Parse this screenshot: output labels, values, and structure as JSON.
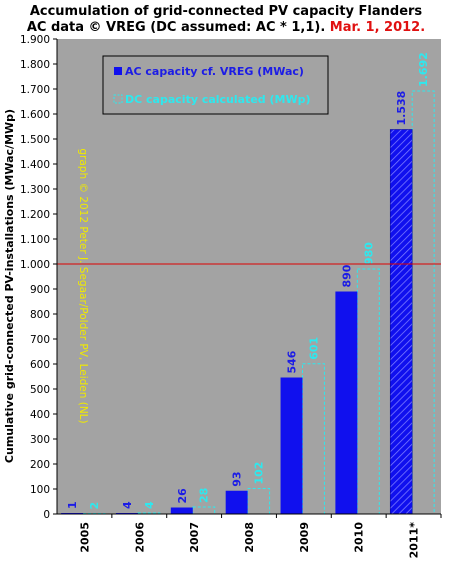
{
  "title": {
    "line1": "Accumulation of grid-connected PV capacity Flanders",
    "line2_black": "AC data © VREG (DC assumed: AC * 1,1).",
    "line2_red": "Mar. 1, 2012."
  },
  "credit": "graph © 2012 Peter J. Segaar/Polder PV, Leiden (NL)",
  "colors": {
    "plot_bg": "#a3a3a3",
    "ac": "#1010ee",
    "dc": "#2ee8ee",
    "refline": "#dd0000",
    "credit": "#f0ea00"
  },
  "chart_data": {
    "type": "bar",
    "categories": [
      "2005",
      "2006",
      "2007",
      "2008",
      "2009",
      "2010",
      "2011*"
    ],
    "series": [
      {
        "name": "AC capacity cf. VREG (MWac)",
        "values": [
          1,
          4,
          26,
          93,
          546,
          890,
          1538
        ],
        "labels": [
          "1",
          "4",
          "26",
          "93",
          "546",
          "890",
          "1.538"
        ]
      },
      {
        "name": "DC capacity calculated (MWp)",
        "values": [
          2,
          4,
          28,
          102,
          601,
          980,
          1692
        ],
        "labels": [
          "2",
          "4",
          "28",
          "102",
          "601",
          "980",
          "1.692"
        ]
      }
    ],
    "ylabel": "Cumulative grid-connected PV-installations (MWac/MWp)",
    "ylim": [
      0,
      1900
    ],
    "yticks": [
      0,
      100,
      200,
      300,
      400,
      500,
      600,
      700,
      800,
      900,
      1000,
      1100,
      1200,
      1300,
      1400,
      1500,
      1600,
      1700,
      1800,
      1900
    ],
    "ytick_labels": [
      "0",
      "100",
      "200",
      "300",
      "400",
      "500",
      "600",
      "700",
      "800",
      "900",
      "1.000",
      "1.100",
      "1.200",
      "1.300",
      "1.400",
      "1.500",
      "1.600",
      "1.700",
      "1.800",
      "1.900"
    ],
    "reference_line": 1000,
    "legend_position": "top-left",
    "grid": false
  }
}
